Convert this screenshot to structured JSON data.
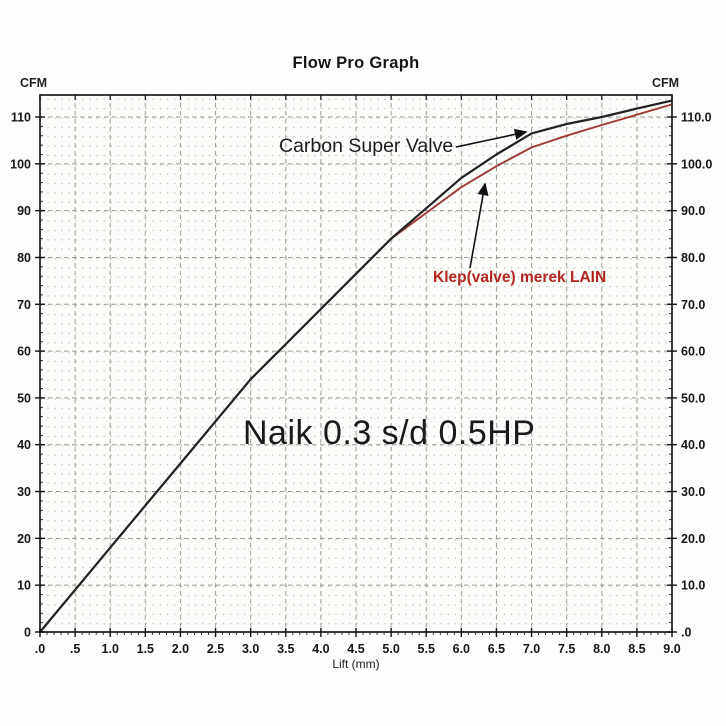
{
  "title": "Flow Pro Graph",
  "axes": {
    "left_unit": "CFM",
    "right_unit": "CFM",
    "x_label": "Lift (mm)",
    "x_tick_labels": [
      ".0",
      ".5",
      "1.0",
      "1.5",
      "2.0",
      "2.5",
      "3.0",
      "3.5",
      "4.0",
      "4.5",
      "5.0",
      "5.5",
      "6.0",
      "6.5",
      "7.0",
      "7.5",
      "8.0",
      "8.5",
      "9.0"
    ],
    "left_tick_labels": [
      "110",
      "100",
      "90",
      "80",
      "70",
      "60",
      "50",
      "40",
      "30",
      "20",
      "10",
      "0"
    ],
    "right_tick_labels": [
      "110.0",
      "100.0",
      "90.0",
      "80.0",
      "70.0",
      "60.0",
      "50.0",
      "40.0",
      "30.0",
      "20.0",
      "10.0",
      ".0"
    ]
  },
  "annotations": {
    "series1_label": "Carbon Super Valve",
    "series2_label": "Klep(valve) merek LAIN",
    "note": "Naik 0.3 s/d 0.5HP"
  },
  "colors": {
    "series1": "#222222",
    "series2": "#9e3a34",
    "series2_label_text": "#b2261e",
    "grid_major": "#9a9a96",
    "grid_minor_dot": "#c3c3bf",
    "axis": "#1a1a1a",
    "background": "#fdfdfb"
  },
  "chart_data": {
    "type": "line",
    "title": "Flow Pro Graph",
    "xlabel": "Lift (mm)",
    "ylabel": "CFM",
    "xlim": [
      0,
      9
    ],
    "ylim": [
      0,
      115
    ],
    "x": [
      0,
      0.5,
      1.0,
      1.5,
      2.0,
      2.5,
      3.0,
      3.5,
      4.0,
      4.5,
      5.0,
      5.5,
      6.0,
      6.5,
      7.0,
      7.5,
      8.0,
      8.5,
      9.0
    ],
    "series": [
      {
        "name": "Carbon Super Valve",
        "color": "#222222",
        "values": [
          0,
          9,
          18,
          27,
          36,
          45,
          54,
          61.5,
          69,
          76.5,
          84,
          90.5,
          97,
          102,
          106.5,
          108.5,
          110,
          111.8,
          113.5
        ]
      },
      {
        "name": "Klep(valve) merek LAIN",
        "color": "#9e3a34",
        "values": [
          0,
          9,
          18,
          27,
          36,
          45,
          54,
          61.5,
          69,
          76.5,
          84,
          89.5,
          95,
          99.5,
          103.5,
          106,
          108.3,
          110.5,
          112.7
        ]
      }
    ],
    "annotation": "Naik 0.3 s/d 0.5HP",
    "grid": "dashed major every 0.5 mm and 10 CFM, fine dotted minor grid",
    "legend_position": "arrow callouts inside plot"
  }
}
